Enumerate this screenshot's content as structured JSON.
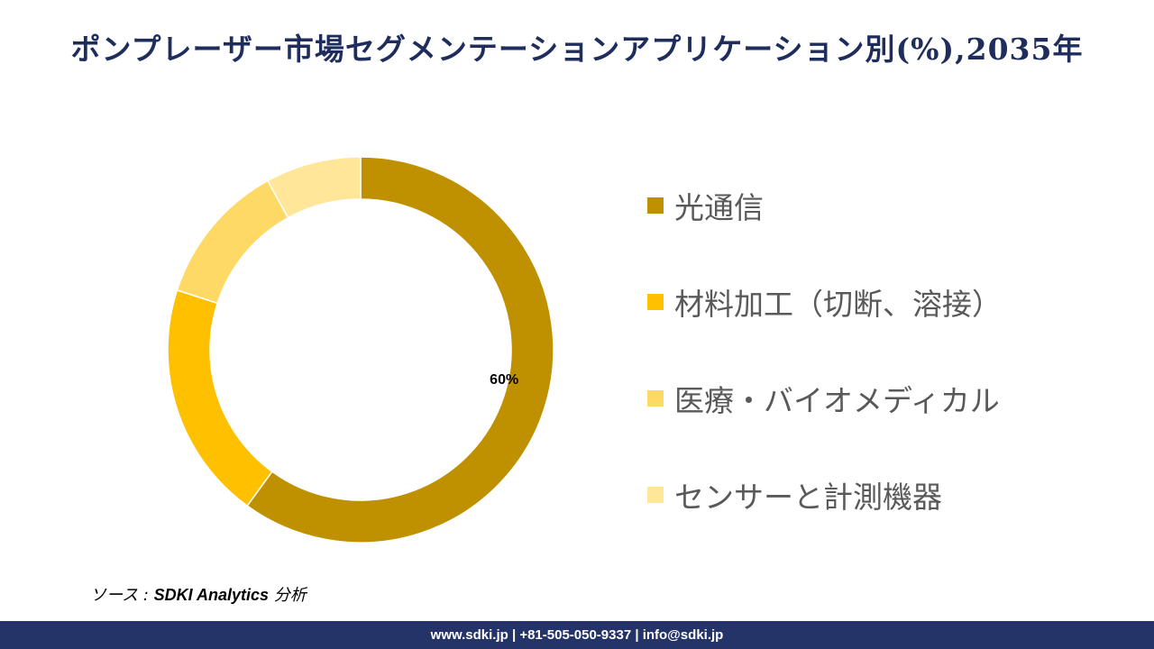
{
  "chart_data": {
    "type": "pie",
    "variant": "donut",
    "title": "ポンプレーザー市場セグメンテーションアプリケーション別(%),2035年",
    "categories": [
      "光通信",
      "材料加工（切断、溶接）",
      "医療・バイオメディカル",
      "センサーと計測機器"
    ],
    "values": [
      60,
      20,
      12,
      8
    ],
    "unit": "%",
    "colors": [
      "#BF9000",
      "#FFC000",
      "#FFD966",
      "#FFE699"
    ],
    "data_labels": [
      {
        "category": "光通信",
        "text": "60%"
      }
    ],
    "legend_placement": "right"
  },
  "source": {
    "prefix": "ソース : ",
    "name": "SDKI Analytics",
    "suffix": " 分析"
  },
  "footer": {
    "text": "www.sdki.jp | +81-505-050-9337 | info@sdki.jp",
    "background": "#253468"
  }
}
